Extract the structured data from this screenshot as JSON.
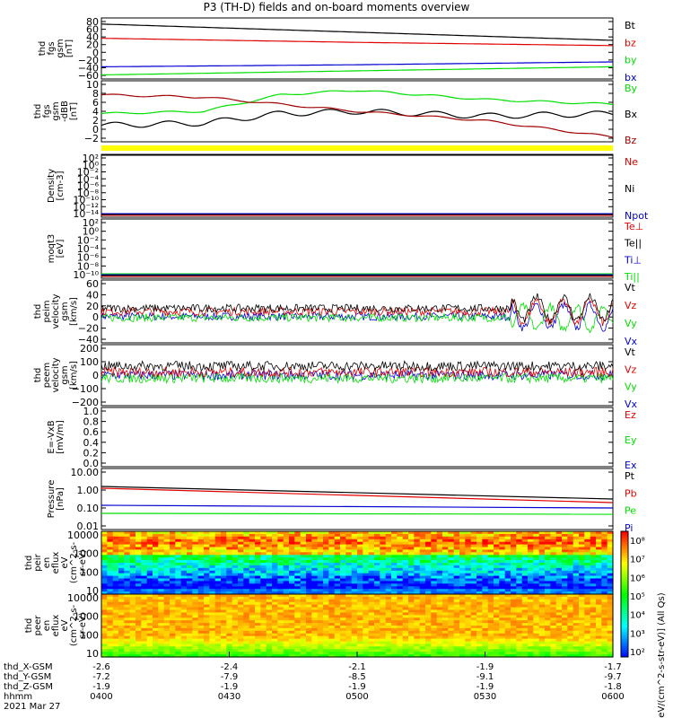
{
  "title": "P3 (TH-D) fields and on-board moments overview",
  "date_label": "2021 Mar 27",
  "colorbar_label": "[eV/(cm^2-s-str-eV)] (All Qs)",
  "colorbar_ticks": [
    "10^8",
    "10^7",
    "10^6",
    "10^5",
    "10^4",
    "10^3",
    "10^2"
  ],
  "colors": {
    "black": "#000000",
    "red": "#e00000",
    "green": "#00e000",
    "blue": "#0000d0",
    "dark_red": "#a00000",
    "yellow": "#ffff00"
  },
  "x_axis": {
    "ticks": [
      "0400",
      "0430",
      "0500",
      "0530",
      "0600"
    ],
    "rows": [
      {
        "label": "thd_X-GSM",
        "values": [
          "-2.6",
          "-2.4",
          "-2.1",
          "-1.9",
          "-1.7"
        ]
      },
      {
        "label": "thd_Y-GSM",
        "values": [
          "-7.2",
          "-7.9",
          "-8.5",
          "-9.1",
          "-9.7"
        ]
      },
      {
        "label": "thd_Z-GSM",
        "values": [
          "-1.9",
          "-1.9",
          "-1.9",
          "-1.9",
          "-1.8"
        ]
      },
      {
        "label": "hhmm",
        "values": [
          "0400",
          "0430",
          "0500",
          "0530",
          "0600"
        ]
      }
    ]
  },
  "chart_data": [
    {
      "type": "line",
      "ylabel": [
        "thd",
        "fgs",
        "gsm",
        "[nT]"
      ],
      "yticks": [
        "80",
        "60",
        "40",
        "20",
        "0",
        "−20",
        "−40",
        "−60"
      ],
      "ylim": [
        -60,
        90
      ],
      "legend": [
        {
          "name": "Bt",
          "color": "#000000"
        },
        {
          "name": "bz",
          "color": "#e00000"
        },
        {
          "name": "by",
          "color": "#00e000"
        },
        {
          "name": "bx",
          "color": "#0000d0"
        }
      ],
      "series": [
        {
          "name": "Bt",
          "x": [
            0,
            0.5,
            1
          ],
          "values": [
            75,
            55,
            35
          ]
        },
        {
          "name": "bz",
          "x": [
            0,
            0.5,
            1
          ],
          "values": [
            40,
            30,
            22
          ]
        },
        {
          "name": "by",
          "x": [
            0,
            0.5,
            1
          ],
          "values": [
            -50,
            -40,
            -30
          ]
        },
        {
          "name": "bx",
          "x": [
            0,
            0.5,
            1
          ],
          "values": [
            -30,
            -25,
            -18
          ]
        }
      ]
    },
    {
      "type": "line",
      "ylabel": [
        "thd",
        "fgs",
        "gsm",
        "-dBB",
        "[nT]"
      ],
      "yticks": [
        "10",
        "8",
        "6",
        "4",
        "2",
        "0",
        "−2"
      ],
      "ylim": [
        -3,
        10
      ],
      "legend": [
        {
          "name": "By",
          "color": "#00e000"
        },
        {
          "name": "Bx",
          "color": "#000000"
        },
        {
          "name": "Bz",
          "color": "#a00000"
        }
      ],
      "series": [
        {
          "name": "By",
          "x": [
            0,
            0.2,
            0.35,
            0.5,
            0.75,
            1
          ],
          "values": [
            3,
            3.5,
            7,
            8,
            6,
            5
          ]
        },
        {
          "name": "Bx",
          "x": [
            0,
            0.2,
            0.35,
            0.5,
            0.75,
            1
          ],
          "values": [
            0.5,
            1,
            3,
            3.5,
            2.5,
            3
          ]
        },
        {
          "name": "Bz",
          "x": [
            0,
            0.2,
            0.35,
            0.5,
            0.75,
            1
          ],
          "values": [
            7,
            6.5,
            5,
            3.5,
            1.5,
            -2
          ]
        }
      ]
    },
    {
      "type": "line",
      "ylabel": [
        "Density",
        "[cm-3]"
      ],
      "yticks": [
        "10^2",
        "10^0",
        "10^-2",
        "10^-4",
        "10^-6",
        "10^-8",
        "10^-10",
        "10^-12",
        "10^-14"
      ],
      "log": true,
      "legend": [
        {
          "name": "Ne",
          "color": "#e00000"
        },
        {
          "name": "Ni",
          "color": "#000000"
        },
        {
          "name": "Npot",
          "color": "#0000d0"
        }
      ]
    },
    {
      "type": "line",
      "ylabel": [
        "moqt3",
        "[eV]"
      ],
      "yticks": [
        "10^2",
        "10^0",
        "10^-2",
        "10^-4",
        "10^-6",
        "10^-8",
        "10^-10"
      ],
      "log": true,
      "legend": [
        {
          "name": "Te⊥",
          "color": "#e00000"
        },
        {
          "name": "Te||",
          "color": "#000000"
        },
        {
          "name": "Ti⊥",
          "color": "#0000d0"
        },
        {
          "name": "Ti||",
          "color": "#00e000"
        }
      ]
    },
    {
      "type": "line",
      "ylabel": [
        "thd",
        "peim",
        "velocity",
        "gsm",
        "[km/s]"
      ],
      "yticks": [
        "60",
        "40",
        "20",
        "0",
        "−20",
        "−40"
      ],
      "ylim": [
        -40,
        60
      ],
      "legend": [
        {
          "name": "Vt",
          "color": "#000000"
        },
        {
          "name": "Vz",
          "color": "#e00000"
        },
        {
          "name": "Vy",
          "color": "#00e000"
        },
        {
          "name": "Vx",
          "color": "#0000d0"
        }
      ]
    },
    {
      "type": "line",
      "ylabel": [
        "thd",
        "peem",
        "velocity",
        "gsm",
        "[km/s]"
      ],
      "yticks": [
        "200",
        "100",
        "0",
        "−100",
        "−200"
      ],
      "ylim": [
        -200,
        200
      ],
      "legend": [
        {
          "name": "Vt",
          "color": "#000000"
        },
        {
          "name": "Vz",
          "color": "#e00000"
        },
        {
          "name": "Vy",
          "color": "#00e000"
        },
        {
          "name": "Vx",
          "color": "#0000d0"
        }
      ]
    },
    {
      "type": "line",
      "ylabel": [
        "E=-VxB",
        "[mV/m]"
      ],
      "yticks": [
        "1.0",
        "0.8",
        "0.6",
        "0.4",
        "0.2",
        "0.0"
      ],
      "ylim": [
        0,
        1
      ],
      "legend": [
        {
          "name": "Ez",
          "color": "#e00000"
        },
        {
          "name": "Ey",
          "color": "#00e000"
        },
        {
          "name": "Ex",
          "color": "#0000d0"
        }
      ]
    },
    {
      "type": "line",
      "ylabel": [
        "Pressure",
        "[nPa]"
      ],
      "yticks": [
        "10.00",
        "1.00",
        "0.10",
        "0.01"
      ],
      "log": true,
      "legend": [
        {
          "name": "Pt",
          "color": "#000000"
        },
        {
          "name": "Pb",
          "color": "#e00000"
        },
        {
          "name": "Pe",
          "color": "#00e000"
        },
        {
          "name": "Pi",
          "color": "#0000d0"
        }
      ]
    },
    {
      "type": "heatmap",
      "ylabel": [
        "thd",
        "peir",
        "en",
        "eflux",
        "eV",
        "(cm^2-s-",
        "sr-eV)"
      ],
      "yticks": [
        "10000",
        "1000",
        "100",
        "10"
      ]
    },
    {
      "type": "heatmap",
      "ylabel": [
        "thd",
        "peer",
        "en",
        "eflux",
        "eV",
        "(cm^2-s-",
        "sr-eV)"
      ],
      "yticks": [
        "10000",
        "1000",
        "100",
        "10"
      ]
    }
  ]
}
